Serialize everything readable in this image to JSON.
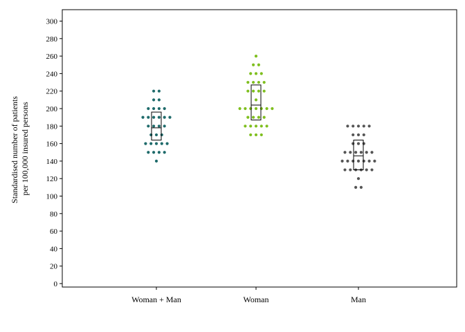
{
  "chart_data": {
    "type": "scatter",
    "subtype": "dot-strip-with-box",
    "ylabel_lines": [
      "Standardised number of patients",
      "per 100,000 insured persons"
    ],
    "ylim": [
      0,
      310
    ],
    "yticks": [
      0,
      20,
      40,
      60,
      80,
      100,
      120,
      140,
      160,
      180,
      200,
      220,
      240,
      260,
      280,
      300
    ],
    "grid": false,
    "categories": [
      "Woman + Man",
      "Woman",
      "Man"
    ],
    "colors": [
      "#1f6b6b",
      "#7fbf1f",
      "#555555"
    ],
    "groups": [
      {
        "category": "Woman + Man",
        "rows": [
          {
            "y": 220,
            "n": 2
          },
          {
            "y": 210,
            "n": 2
          },
          {
            "y": 200,
            "n": 4
          },
          {
            "y": 190,
            "n": 6
          },
          {
            "y": 180,
            "n": 4
          },
          {
            "y": 170,
            "n": 3
          },
          {
            "y": 160,
            "n": 5
          },
          {
            "y": 150,
            "n": 4
          },
          {
            "y": 140,
            "n": 1
          }
        ],
        "box": {
          "q1": 164,
          "median": 178,
          "q3": 196
        }
      },
      {
        "category": "Woman",
        "rows": [
          {
            "y": 260,
            "n": 1
          },
          {
            "y": 250,
            "n": 2
          },
          {
            "y": 240,
            "n": 3
          },
          {
            "y": 230,
            "n": 4
          },
          {
            "y": 220,
            "n": 4
          },
          {
            "y": 210,
            "n": 1
          },
          {
            "y": 200,
            "n": 7
          },
          {
            "y": 190,
            "n": 4
          },
          {
            "y": 180,
            "n": 5
          },
          {
            "y": 170,
            "n": 3
          }
        ],
        "box": {
          "q1": 187,
          "median": 204,
          "q3": 227
        }
      },
      {
        "category": "Man",
        "rows": [
          {
            "y": 180,
            "n": 5
          },
          {
            "y": 170,
            "n": 3
          },
          {
            "y": 160,
            "n": 3
          },
          {
            "y": 150,
            "n": 6
          },
          {
            "y": 140,
            "n": 7
          },
          {
            "y": 130,
            "n": 6
          },
          {
            "y": 120,
            "n": 1
          },
          {
            "y": 110,
            "n": 2
          }
        ],
        "box": {
          "q1": 130,
          "median": 146,
          "q3": 164
        }
      }
    ]
  }
}
